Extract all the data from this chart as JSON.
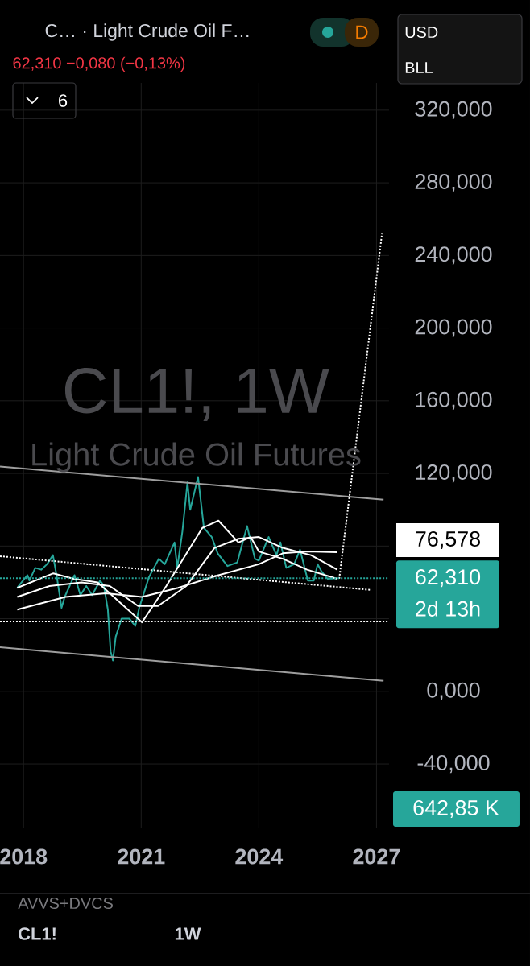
{
  "chart_data": {
    "type": "line",
    "title": "C… · Light Crude Oil F…",
    "subtitle": "62,310 −0,080 (−0,13%)",
    "xlim": [
      2017.4,
      2027.32
    ],
    "xticks": [
      2018,
      2021,
      2024,
      2027
    ],
    "ylim": [
      -75,
      335
    ],
    "yticks": [
      {
        "value": 320,
        "label": "320,000"
      },
      {
        "value": 280,
        "label": "280,000"
      },
      {
        "value": 240,
        "label": "240,000"
      },
      {
        "value": 200,
        "label": "200,000"
      },
      {
        "value": 160,
        "label": "160,000"
      },
      {
        "value": 120,
        "label": "120,000"
      },
      {
        "value": 80,
        "label": null
      },
      {
        "value": 40,
        "label": null
      },
      {
        "value": 0,
        "label": "0,000"
      },
      {
        "value": -40,
        "label": "-40,000"
      }
    ],
    "grid": true,
    "series": [
      {
        "color": "#26a69a",
        "line_style": "solid",
        "x": [
          2017.84,
          2017.95,
          2018.1,
          2018.15,
          2018.3,
          2018.45,
          2018.6,
          2018.75,
          2018.85,
          2018.97,
          2019.05,
          2019.3,
          2019.45,
          2019.6,
          2019.75,
          2019.95,
          2020.05,
          2020.15,
          2020.22,
          2020.28,
          2020.35,
          2020.5,
          2020.7,
          2020.85,
          2020.95,
          2021.2,
          2021.45,
          2021.6,
          2021.85,
          2021.92,
          2022.05,
          2022.18,
          2022.25,
          2022.45,
          2022.6,
          2022.8,
          2022.95,
          2023.2,
          2023.45,
          2023.7,
          2023.9,
          2024.0,
          2024.25,
          2024.45,
          2024.55,
          2024.7,
          2024.9,
          2025.05,
          2025.25,
          2025.4,
          2025.5,
          2025.6,
          2025.75,
          2026.0
        ],
        "values": [
          57,
          60,
          64,
          61,
          68,
          67,
          70,
          75,
          63,
          46,
          52,
          64,
          53,
          58,
          53,
          61,
          58,
          45,
          22,
          17,
          30,
          40,
          40,
          36,
          46,
          63,
          73,
          70,
          82,
          68,
          88,
          115,
          100,
          118,
          90,
          85,
          76,
          69,
          71,
          91,
          73,
          72,
          85,
          75,
          82,
          68,
          70,
          78,
          61,
          61,
          70,
          66,
          62,
          62.31
        ]
      },
      {
        "color": "#ffffff",
        "line_style": "solid",
        "x": [
          2017.84,
          2019.07,
          2020.1,
          2021.02,
          2021.94,
          2022.97,
          2024.0,
          2024.61,
          2025.23,
          2026.0
        ],
        "values": [
          45,
          52,
          54,
          52,
          57,
          64,
          70,
          76,
          77,
          76.578
        ]
      },
      {
        "color": "#ffffff",
        "line_style": "solid",
        "x": [
          2017.84,
          2018.66,
          2019.48,
          2020.2,
          2020.92,
          2021.43,
          2022.15,
          2022.87,
          2023.48,
          2024.0,
          2024.61,
          2025.33,
          2026.0
        ],
        "values": [
          52,
          58,
          60,
          58,
          47,
          47,
          58,
          79,
          84,
          85,
          79,
          75,
          67
        ]
      },
      {
        "color": "#ffffff",
        "line_style": "solid",
        "x": [
          2017.84,
          2018.76,
          2019.28,
          2019.89,
          2020.2,
          2021.02,
          2021.64,
          2022.56,
          2022.97,
          2023.48,
          2023.79,
          2024.0,
          2024.61,
          2025.23,
          2026.0
        ],
        "values": [
          57,
          65,
          62,
          60,
          54,
          38,
          58,
          90,
          94,
          82,
          85,
          77,
          73,
          67,
          62
        ]
      },
      {
        "color": "#9e9e9e",
        "line_style": "solid",
        "x": [
          2017.4,
          2027.18
        ],
        "values": [
          123.8,
          105.5
        ]
      },
      {
        "color": "#9e9e9e",
        "line_style": "solid",
        "x": [
          2017.4,
          2027.18
        ],
        "values": [
          24.3,
          5.8
        ]
      },
      {
        "color": "#ffffff",
        "line_style": "dotted",
        "x": [
          2017.4,
          2026.87
        ],
        "values": [
          74.4,
          55.8
        ]
      },
      {
        "color": "#ffffff",
        "line_style": "dotted",
        "x": [
          2026.05,
          2027.14
        ],
        "values": [
          62,
          252
        ]
      }
    ],
    "ref_lines": [
      {
        "axis": "y",
        "value": 38.5,
        "color": "#ffffff",
        "line_style": "dotted"
      },
      {
        "axis": "y",
        "value": 62.31,
        "label": "62,310",
        "color": "#26a69a",
        "line_style": "dotted"
      }
    ],
    "annotations": [
      "6",
      "D",
      "USD",
      "BLL",
      "CL1!, 1W",
      "Light Crude Oil Futures",
      "76,578",
      "2d 13h",
      "642,85 K",
      "AVVS+DVCS",
      "CL1!",
      "1W"
    ]
  }
}
